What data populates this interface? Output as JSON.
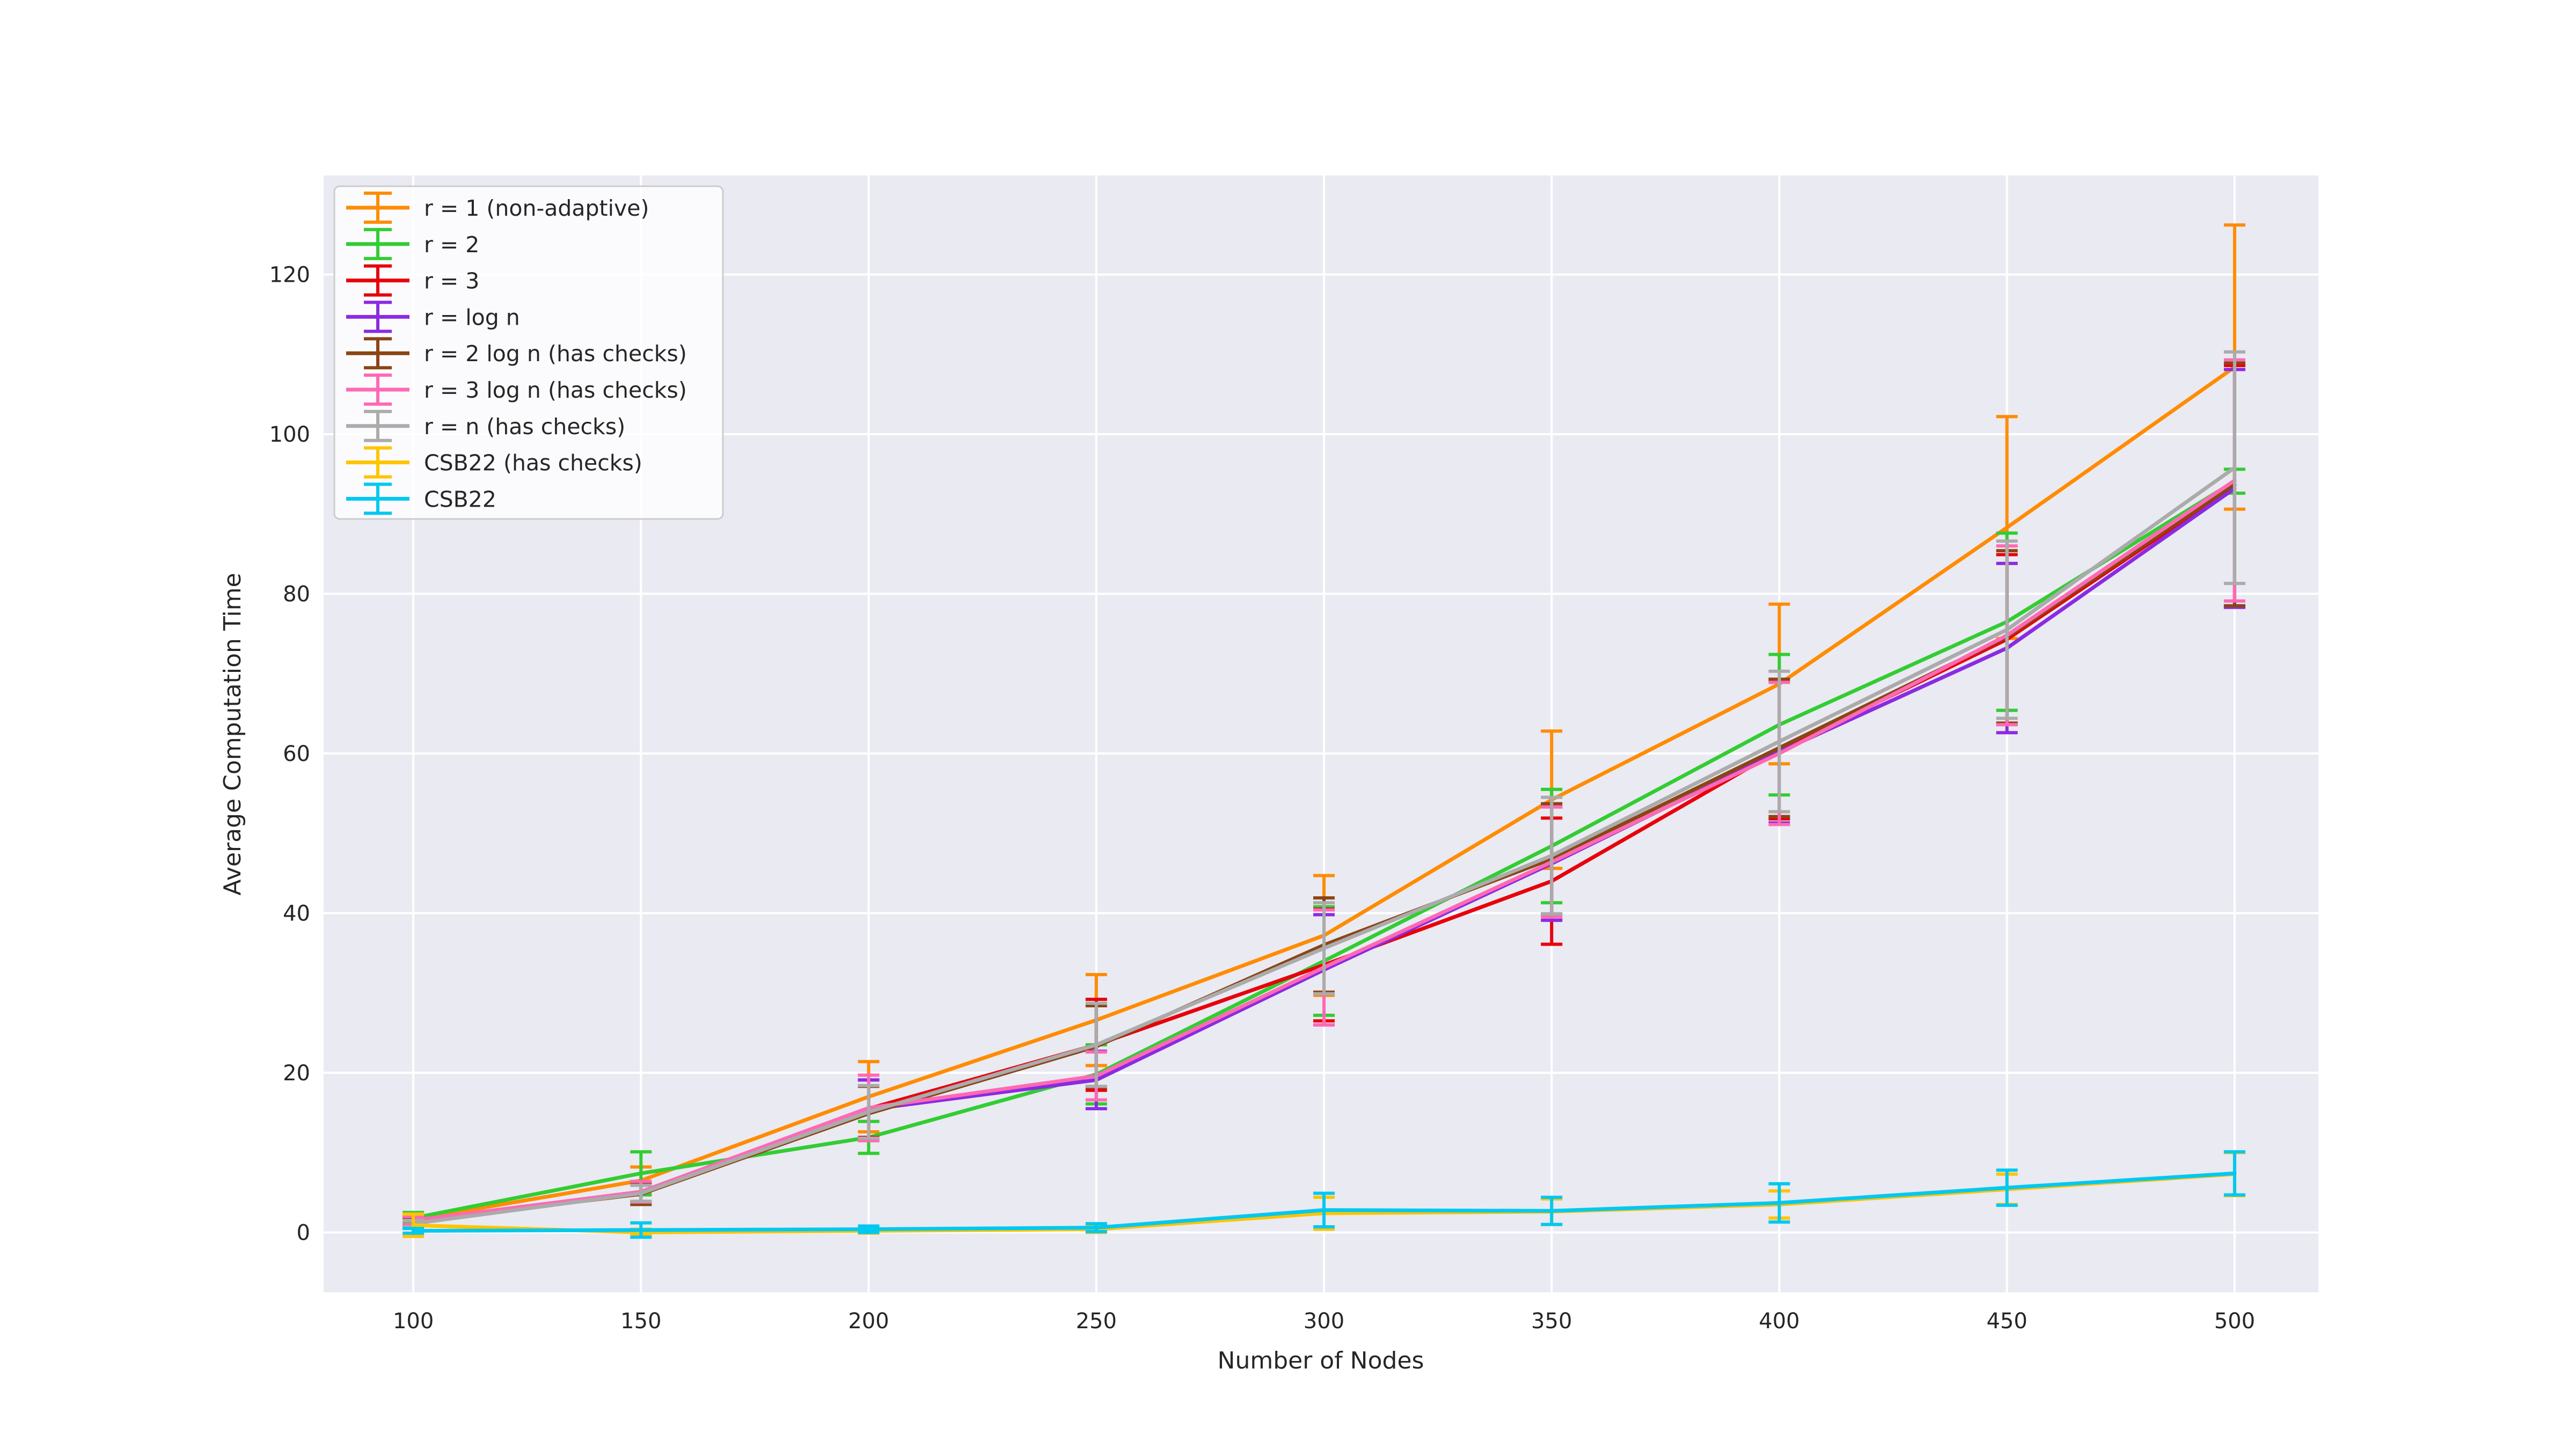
{
  "figure": {
    "background": "#FFFFFF"
  },
  "chart_data": {
    "type": "line",
    "title": "",
    "xlabel": "Number of Nodes",
    "ylabel": "Average Computation Time",
    "x": [
      100,
      150,
      200,
      250,
      300,
      350,
      400,
      450,
      500
    ],
    "xticks": [
      100,
      150,
      200,
      250,
      300,
      350,
      400,
      450,
      500
    ],
    "yticks": [
      0,
      20,
      40,
      60,
      80,
      100,
      120
    ],
    "xlim": [
      80.3,
      518.4
    ],
    "ylim": [
      -7.5,
      132.4
    ],
    "grid": true,
    "legend_position": "upper-left",
    "plot_background": "#EAEAF2",
    "grid_color": "#FFFFFF",
    "text_color": "#262626",
    "legend_border_color": "#CCCCCC",
    "legend_background": "rgba(255,255,255,0.8)",
    "series": [
      {
        "name": "r = 1 (non-adaptive)",
        "color": "#FF8C00",
        "values": [
          1.6,
          6.5,
          17.0,
          26.6,
          37.2,
          54.2,
          68.7,
          88.3,
          108.4
        ],
        "errors": [
          0.6,
          1.7,
          4.4,
          5.7,
          7.5,
          8.6,
          10.0,
          13.9,
          17.8
        ]
      },
      {
        "name": "r = 2",
        "color": "#32CD32",
        "values": [
          1.8,
          7.4,
          11.9,
          19.8,
          34.0,
          48.4,
          63.6,
          76.5,
          94.1
        ],
        "errors": [
          0.7,
          2.7,
          2.0,
          3.7,
          6.8,
          7.1,
          8.8,
          11.1,
          1.5
        ]
      },
      {
        "name": "r = 3",
        "color": "#E8000B",
        "values": [
          1.4,
          5.0,
          15.5,
          23.5,
          33.5,
          44.0,
          60.4,
          74.3,
          93.5
        ],
        "errors": [
          0.5,
          1.2,
          3.6,
          5.7,
          7.0,
          7.9,
          8.6,
          10.6,
          15.1
        ]
      },
      {
        "name": "r = log n",
        "color": "#8A2BE2",
        "values": [
          1.4,
          5.0,
          15.4,
          19.1,
          32.9,
          46.2,
          60.2,
          73.2,
          93.2
        ],
        "errors": [
          0.5,
          1.2,
          3.7,
          3.6,
          6.9,
          7.1,
          8.9,
          10.6,
          14.9
        ]
      },
      {
        "name": "r = 2 log n (has checks)",
        "color": "#8B4513",
        "values": [
          1.4,
          4.8,
          14.9,
          23.3,
          36.0,
          46.8,
          60.7,
          74.6,
          93.7
        ],
        "errors": [
          0.5,
          1.3,
          3.4,
          5.1,
          5.9,
          6.9,
          8.6,
          10.8,
          15.2
        ]
      },
      {
        "name": "r = 3 log n (has checks)",
        "color": "#FF69B4",
        "values": [
          1.5,
          5.1,
          15.6,
          19.6,
          33.2,
          46.4,
          60.0,
          74.8,
          94.2
        ],
        "errors": [
          0.5,
          1.3,
          4.1,
          3.0,
          7.2,
          6.9,
          8.9,
          11.2,
          15.1
        ]
      },
      {
        "name": "r = n (has checks)",
        "color": "#ABABAB",
        "values": [
          1.1,
          4.9,
          15.1,
          23.5,
          35.6,
          47.2,
          61.5,
          75.5,
          95.8
        ],
        "errors": [
          0.4,
          1.0,
          3.3,
          5.2,
          5.7,
          7.3,
          8.8,
          11.1,
          14.5
        ]
      },
      {
        "name": "CSB22 (has checks)",
        "color": "#FFC400",
        "values": [
          0.9,
          0.0,
          0.2,
          0.4,
          2.4,
          2.6,
          3.5,
          5.4,
          7.3
        ],
        "errors": [
          1.4,
          0.4,
          0.3,
          0.4,
          2.0,
          1.6,
          1.7,
          1.9,
          2.7
        ]
      },
      {
        "name": "CSB22",
        "color": "#00C8F0",
        "values": [
          0.2,
          0.3,
          0.4,
          0.6,
          2.8,
          2.7,
          3.7,
          5.6,
          7.4
        ],
        "errors": [
          0.3,
          0.9,
          0.4,
          0.5,
          2.1,
          1.7,
          2.4,
          2.2,
          2.7
        ]
      }
    ]
  }
}
